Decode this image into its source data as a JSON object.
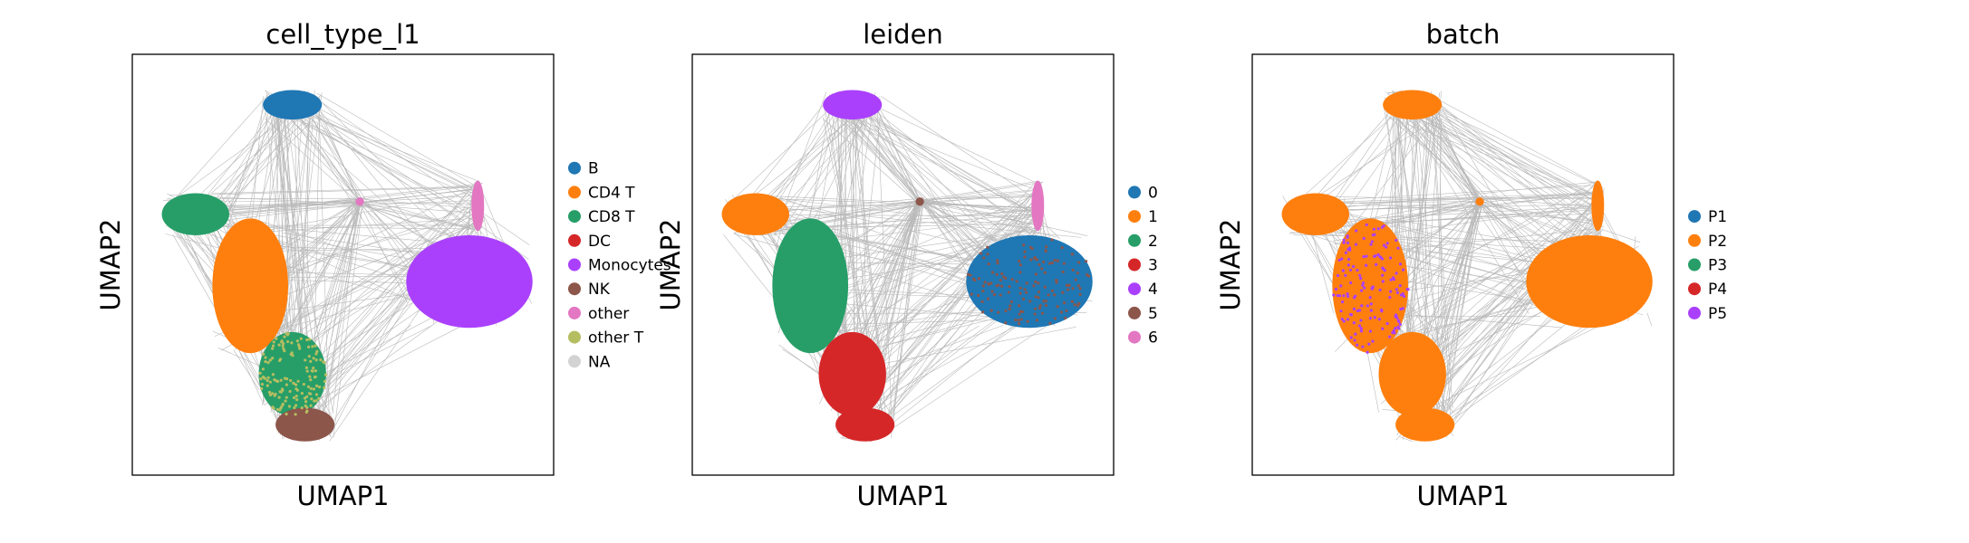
{
  "chart_data": [
    {
      "type": "scatter",
      "title": "cell_type_l1",
      "xlabel": "UMAP1",
      "ylabel": "UMAP2",
      "grid": false,
      "legend_position": "right",
      "legend": [
        {
          "name": "B",
          "color": "#1f77b4"
        },
        {
          "name": "CD4 T",
          "color": "#ff7f0e"
        },
        {
          "name": "CD8 T",
          "color": "#279e68"
        },
        {
          "name": "DC",
          "color": "#d62728"
        },
        {
          "name": "Monocytes",
          "color": "#aa40fc"
        },
        {
          "name": "NK",
          "color": "#8c564b"
        },
        {
          "name": "other",
          "color": "#e377c2"
        },
        {
          "name": "other T",
          "color": "#b5bd61"
        },
        {
          "name": "NA",
          "color": "#d3d3d3"
        }
      ]
    },
    {
      "type": "scatter",
      "title": "leiden",
      "xlabel": "UMAP1",
      "ylabel": "UMAP2",
      "grid": false,
      "legend_position": "right",
      "legend": [
        {
          "name": "0",
          "color": "#1f77b4"
        },
        {
          "name": "1",
          "color": "#ff7f0e"
        },
        {
          "name": "2",
          "color": "#279e68"
        },
        {
          "name": "3",
          "color": "#d62728"
        },
        {
          "name": "4",
          "color": "#aa40fc"
        },
        {
          "name": "5",
          "color": "#8c564b"
        },
        {
          "name": "6",
          "color": "#e377c2"
        }
      ]
    },
    {
      "type": "scatter",
      "title": "batch",
      "xlabel": "UMAP1",
      "ylabel": "UMAP2",
      "grid": false,
      "legend_position": "right",
      "legend": [
        {
          "name": "P1",
          "color": "#1f77b4"
        },
        {
          "name": "P2",
          "color": "#ff7f0e"
        },
        {
          "name": "P3",
          "color": "#279e68"
        },
        {
          "name": "P4",
          "color": "#d62728"
        },
        {
          "name": "P5",
          "color": "#aa40fc"
        }
      ]
    }
  ],
  "colors": {
    "edge": "#808080",
    "axes_frame": "#000000"
  }
}
